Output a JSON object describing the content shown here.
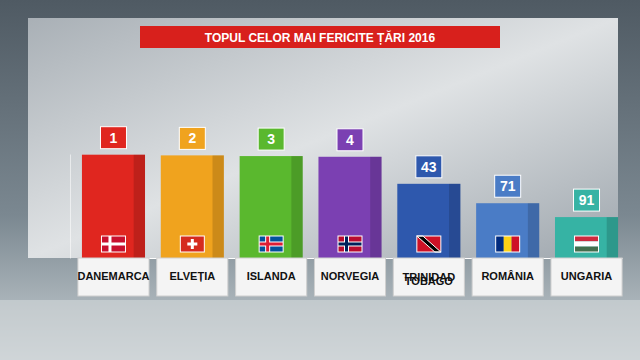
{
  "chart_data": {
    "type": "bar",
    "title": "TOPUL CELOR MAI FERICITE ȚĂRI 2016",
    "categories": [
      "DANEMARCA",
      "ELVEȚIA",
      "ISLANDA",
      "NORVEGIA",
      "TRINIDAD TOBAGO",
      "ROMÂNIA",
      "UNGARIA"
    ],
    "values": [
      1,
      2,
      3,
      4,
      43,
      71,
      91
    ],
    "colors": [
      "#e0261f",
      "#f0a31e",
      "#5ab82e",
      "#7b40b2",
      "#2e58ad",
      "#4a7cc6",
      "#36b3a4"
    ],
    "ylim": [
      150,
      0
    ],
    "tick_labels": false,
    "data_labels": true,
    "grid": false
  }
}
